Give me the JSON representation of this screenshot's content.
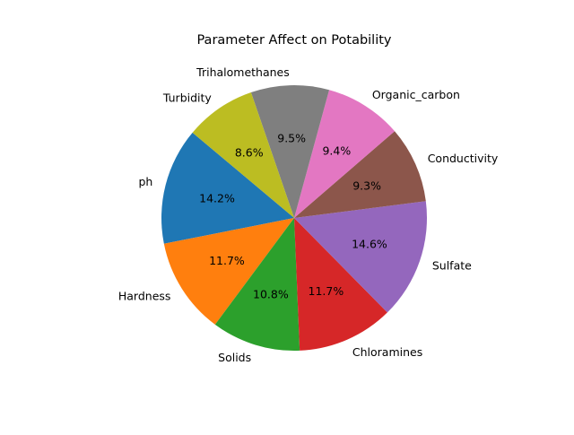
{
  "chart_data": {
    "type": "pie",
    "title": "Parameter Affect on Potability",
    "start_angle_deg": 140,
    "direction": "counterclockwise",
    "slices": [
      {
        "label": "ph",
        "value": 14.2,
        "pct_label": "14.2%",
        "color": "#1f77b4"
      },
      {
        "label": "Hardness",
        "value": 11.7,
        "pct_label": "11.7%",
        "color": "#ff7f0e"
      },
      {
        "label": "Solids",
        "value": 10.8,
        "pct_label": "10.8%",
        "color": "#2ca02c"
      },
      {
        "label": "Chloramines",
        "value": 11.7,
        "pct_label": "11.7%",
        "color": "#d62728"
      },
      {
        "label": "Sulfate",
        "value": 14.6,
        "pct_label": "14.6%",
        "color": "#9467bd"
      },
      {
        "label": "Conductivity",
        "value": 9.3,
        "pct_label": "9.3%",
        "color": "#8c564b"
      },
      {
        "label": "Organic_carbon",
        "value": 9.4,
        "pct_label": "9.4%",
        "color": "#e377c2"
      },
      {
        "label": "Trihalomethanes",
        "value": 9.5,
        "pct_label": "9.5%",
        "color": "#7f7f7f"
      },
      {
        "label": "Turbidity",
        "value": 8.6,
        "pct_label": "8.6%",
        "color": "#bcbd22"
      }
    ]
  }
}
